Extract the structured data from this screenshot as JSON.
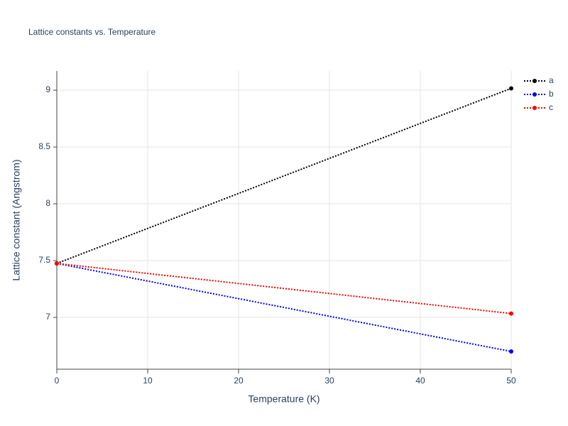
{
  "chart_data": {
    "type": "line",
    "title": "Lattice constants vs. Temperature",
    "x_label": "Temperature (K)",
    "y_label": "Lattice constant (Angstrom)",
    "x": [
      0,
      50
    ],
    "series": [
      {
        "name": "a",
        "color": "#000000",
        "values": [
          7.475,
          9.016
        ]
      },
      {
        "name": "b",
        "color": "#0000ff",
        "values": [
          7.475,
          6.7
        ]
      },
      {
        "name": "c",
        "color": "#ff0000",
        "values": [
          7.475,
          7.034
        ]
      }
    ],
    "xlim": [
      0,
      50
    ],
    "xticks": [
      0,
      10,
      20,
      30,
      40,
      50
    ],
    "ylim": [
      6.544,
      9.169
    ],
    "yticks": [
      7,
      7.5,
      8,
      8.5,
      9
    ],
    "grid": true,
    "legend": "top-right"
  }
}
